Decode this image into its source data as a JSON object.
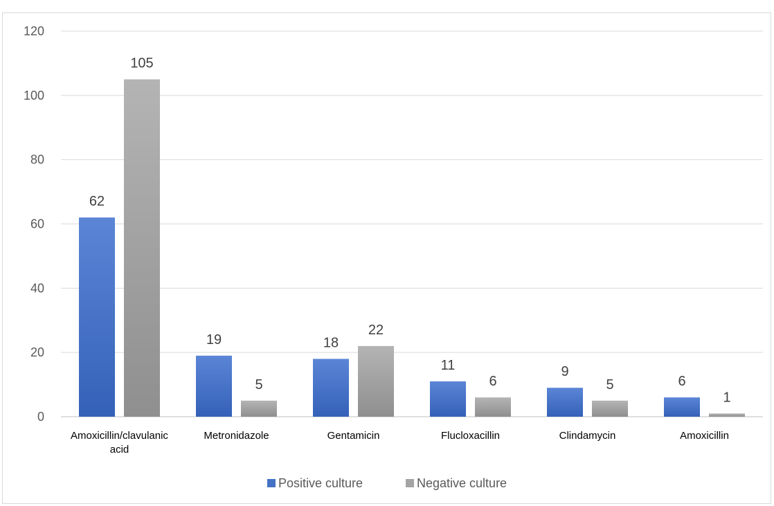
{
  "chart_data": {
    "type": "bar",
    "categories": [
      [
        "Amoxicillin/clavulanic",
        "acid"
      ],
      [
        "Metronidazole"
      ],
      [
        "Gentamicin"
      ],
      [
        "Flucloxacillin"
      ],
      [
        "Clindamycin"
      ],
      [
        "Amoxicillin"
      ]
    ],
    "series": [
      {
        "name": "Positive culture",
        "values": [
          62,
          19,
          18,
          11,
          9,
          6
        ],
        "color": "#4472C4"
      },
      {
        "name": "Negative culture",
        "values": [
          105,
          5,
          22,
          6,
          5,
          1
        ],
        "color": "#A5A5A5"
      }
    ],
    "yticks": [
      "0",
      "20",
      "40",
      "60",
      "80",
      "100",
      "120"
    ],
    "ylim": [
      0,
      120
    ],
    "grid": true,
    "legend_position": "bottom",
    "data_labels": true
  }
}
